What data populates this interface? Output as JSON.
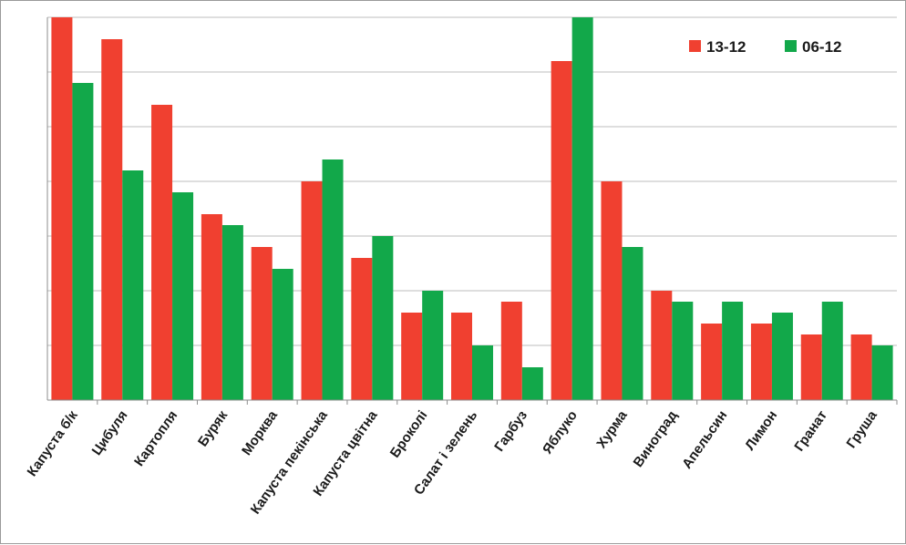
{
  "chart_data": {
    "type": "bar",
    "title": "",
    "xlabel": "",
    "ylabel": "",
    "ylim": [
      0,
      35
    ],
    "grid": true,
    "legend_position": "top-right",
    "categories": [
      "Капуста б/к",
      "Цибуля",
      "Картопля",
      "Буряк",
      "Морква",
      "Капуста пекінська",
      "Капуста цвітна",
      "Броколі",
      "Салат і зелень",
      "Гарбуз",
      "Яблуко",
      "Хурма",
      "Виноград",
      "Апельсин",
      "Лимон",
      "Гранат",
      "Груша"
    ],
    "series": [
      {
        "name": "13-12",
        "color": "#f04030",
        "values": [
          35,
          33,
          27,
          17,
          14,
          20,
          13,
          8,
          8,
          9,
          31,
          20,
          10,
          7,
          7,
          6,
          6
        ]
      },
      {
        "name": "06-12",
        "color": "#12a84a",
        "values": [
          29,
          21,
          19,
          16,
          12,
          22,
          15,
          10,
          5,
          3,
          35,
          14,
          9,
          9,
          8,
          9,
          5
        ]
      }
    ]
  }
}
